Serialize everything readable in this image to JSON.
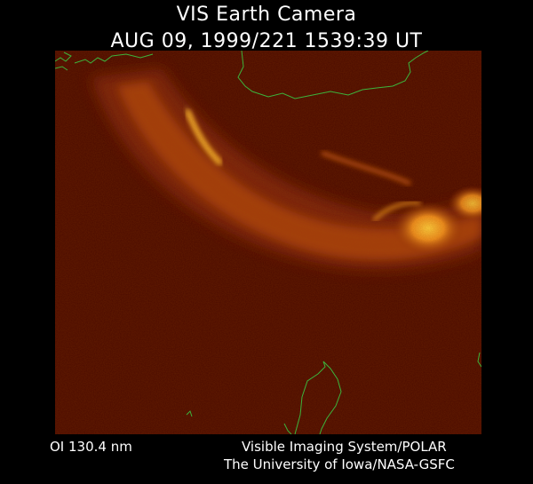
{
  "title": {
    "line1": "VIS Earth Camera",
    "line2": "AUG 09, 1999/221 1539:39 UT"
  },
  "footer": {
    "band": "OI  130.4 nm",
    "credit_line1": "Visible Imaging System/POLAR",
    "credit_line2": "The University of Iowa/NASA-GSFC"
  },
  "image": {
    "subject": "auroral oval emission over polar region with coastline overlay",
    "colors": {
      "background": "#000000",
      "sky": "#4a0a00",
      "aurora_dim": "#8a2a05",
      "aurora_mid": "#c85a10",
      "aurora_bright": "#ffb020",
      "coastline": "#3cb43c",
      "text": "#ffffff"
    }
  }
}
